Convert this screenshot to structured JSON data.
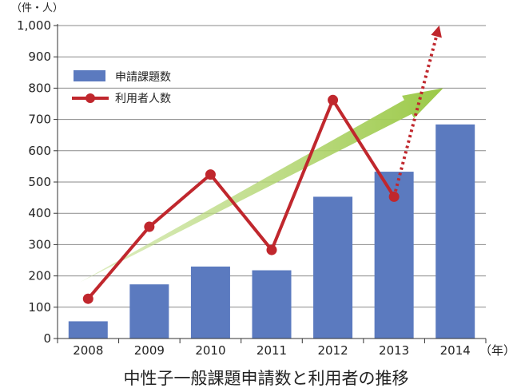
{
  "chart_data": {
    "type": "bar",
    "title": "中性子一般課題申請数と利用者の推移",
    "y_unit_label": "（件・人）",
    "x_unit_label": "（年）",
    "categories": [
      "2008",
      "2009",
      "2010",
      "2011",
      "2012",
      "2013",
      "2014"
    ],
    "ylim": [
      0,
      1000
    ],
    "yticks": [
      0,
      100,
      200,
      300,
      400,
      500,
      600,
      700,
      800,
      900,
      1000
    ],
    "ytick_labels": [
      "0",
      "100",
      "200",
      "300",
      "400",
      "500",
      "600",
      "700",
      "800",
      "900",
      "1,000"
    ],
    "grid": true,
    "legend_position": "top-left",
    "series": [
      {
        "name": "申請課題数",
        "type": "bar",
        "color": "#5b7abf",
        "values": [
          55,
          173,
          230,
          218,
          453,
          533,
          684
        ]
      },
      {
        "name": "利用者人数",
        "type": "line",
        "color": "#c0272d",
        "values": [
          127,
          357,
          524,
          283,
          762,
          453,
          null
        ],
        "dotted_trend_to": 1000
      }
    ],
    "trend_arrow": {
      "color": "#a9cf5a",
      "from": 180,
      "to": 800
    }
  }
}
